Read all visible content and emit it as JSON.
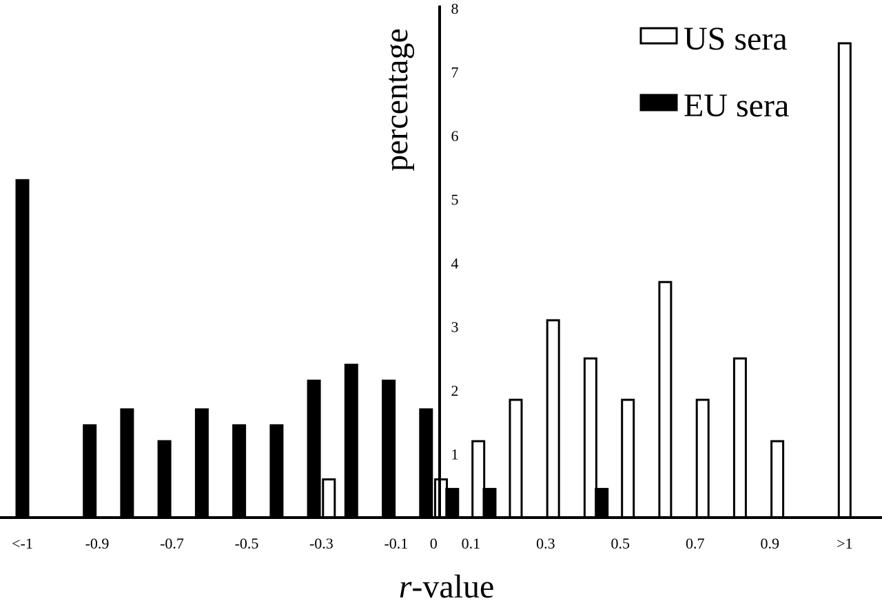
{
  "chart_data": {
    "type": "bar",
    "xlabel_italic": "r",
    "xlabel_rest": "-value",
    "ylabel": "percentage",
    "y_ticks": [
      "1",
      "2",
      "3",
      "4",
      "5",
      "6",
      "7",
      "8"
    ],
    "x_ticks": [
      {
        "label": "<-1",
        "value": -1.1
      },
      {
        "label": "-0.9",
        "value": -0.9
      },
      {
        "label": "-0.7",
        "value": -0.7
      },
      {
        "label": "-0.5",
        "value": -0.5
      },
      {
        "label": "-0.3",
        "value": -0.3
      },
      {
        "label": "-0.1",
        "value": -0.1
      },
      {
        "label": "0",
        "value": 0
      },
      {
        "label": "0.1",
        "value": 0.1
      },
      {
        "label": "0.3",
        "value": 0.3
      },
      {
        "label": "0.5",
        "value": 0.5
      },
      {
        "label": "0.7",
        "value": 0.7
      },
      {
        "label": "0.9",
        "value": 0.9
      },
      {
        "label": ">1",
        "value": 1.1
      }
    ],
    "ylim": [
      0,
      8
    ],
    "legend_position": "top-right",
    "series": [
      {
        "name": "US sera",
        "fill": "#ffffff",
        "points": [
          {
            "x": -0.28,
            "y": 0.6
          },
          {
            "x": 0.02,
            "y": 0.6
          },
          {
            "x": 0.12,
            "y": 1.2
          },
          {
            "x": 0.22,
            "y": 1.85
          },
          {
            "x": 0.32,
            "y": 3.1
          },
          {
            "x": 0.42,
            "y": 2.5
          },
          {
            "x": 0.52,
            "y": 1.85
          },
          {
            "x": 0.62,
            "y": 3.7
          },
          {
            "x": 0.72,
            "y": 1.85
          },
          {
            "x": 0.82,
            "y": 2.5
          },
          {
            "x": 0.92,
            "y": 1.2
          },
          {
            "x": 1.1,
            "y": 7.45
          }
        ]
      },
      {
        "name": "EU sera",
        "fill": "#000000",
        "points": [
          {
            "x": -1.1,
            "y": 5.3
          },
          {
            "x": -0.92,
            "y": 1.45
          },
          {
            "x": -0.82,
            "y": 1.7
          },
          {
            "x": -0.72,
            "y": 1.2
          },
          {
            "x": -0.62,
            "y": 1.7
          },
          {
            "x": -0.52,
            "y": 1.45
          },
          {
            "x": -0.42,
            "y": 1.45
          },
          {
            "x": -0.32,
            "y": 2.15
          },
          {
            "x": -0.22,
            "y": 2.4
          },
          {
            "x": -0.12,
            "y": 2.15
          },
          {
            "x": -0.02,
            "y": 1.7
          },
          {
            "x": 0.05,
            "y": 0.45
          },
          {
            "x": 0.15,
            "y": 0.45
          },
          {
            "x": 0.45,
            "y": 0.45
          }
        ]
      }
    ]
  }
}
